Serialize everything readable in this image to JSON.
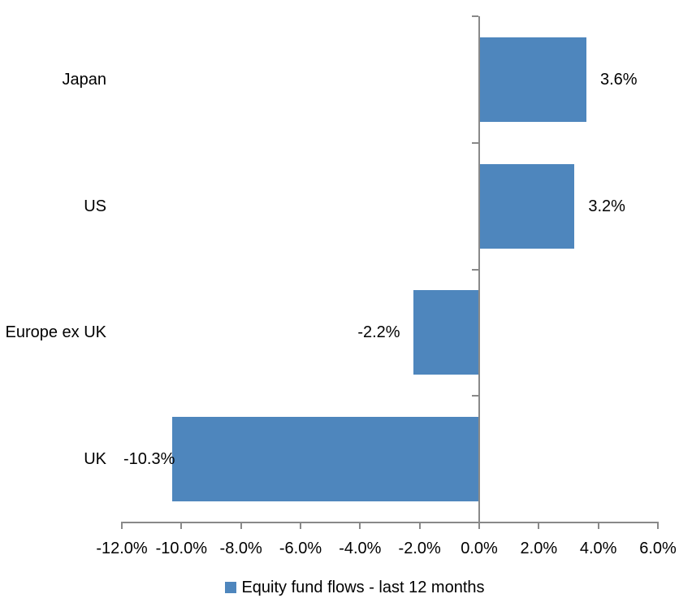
{
  "chart_data": {
    "type": "bar",
    "orientation": "horizontal",
    "title": "",
    "categories": [
      "Japan",
      "US",
      "Europe ex UK",
      "UK"
    ],
    "series": [
      {
        "name": "Equity fund flows - last 12 months",
        "values": [
          3.6,
          3.2,
          -2.2,
          -10.3
        ],
        "labels": [
          "3.6%",
          "3.2%",
          "-2.2%",
          "-10.3%"
        ],
        "color": "#4E86BD"
      }
    ],
    "xlim": [
      -12,
      6
    ],
    "x_ticks": [
      {
        "value": -12,
        "label": "-12.0%"
      },
      {
        "value": -10,
        "label": "-10.0%"
      },
      {
        "value": -8,
        "label": "-8.0%"
      },
      {
        "value": -6,
        "label": "-6.0%"
      },
      {
        "value": -4,
        "label": "-4.0%"
      },
      {
        "value": -2,
        "label": "-2.0%"
      },
      {
        "value": 0,
        "label": "0.0%"
      },
      {
        "value": 2,
        "label": "2.0%"
      },
      {
        "value": 4,
        "label": "4.0%"
      },
      {
        "value": 6,
        "label": "6.0%"
      }
    ],
    "grid": false,
    "legend_position": "bottom"
  },
  "colors": {
    "bar": "#4E86BD",
    "axis": "#898989",
    "text": "#000000"
  }
}
